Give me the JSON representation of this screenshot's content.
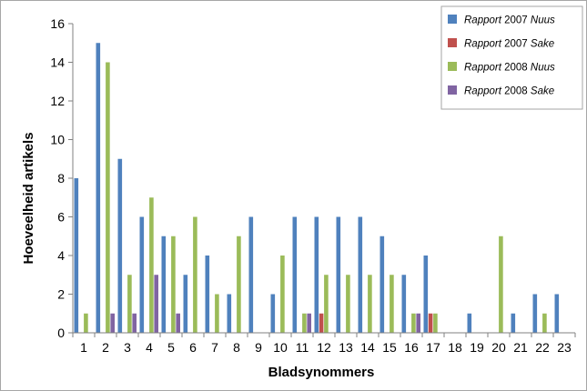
{
  "chart_data": {
    "type": "bar",
    "categories": [
      "1",
      "2",
      "3",
      "4",
      "5",
      "6",
      "7",
      "8",
      "9",
      "10",
      "11",
      "12",
      "13",
      "14",
      "15",
      "16",
      "17",
      "18",
      "19",
      "20",
      "21",
      "22",
      "23"
    ],
    "series": [
      {
        "name_prefix": "Rapport",
        "name_year": "2007",
        "name_suffix": "Nuus",
        "color": "#4f81bd",
        "values": [
          8,
          15,
          9,
          6,
          5,
          3,
          4,
          2,
          6,
          2,
          6,
          6,
          6,
          6,
          5,
          3,
          4,
          0,
          1,
          0,
          1,
          2,
          2
        ]
      },
      {
        "name_prefix": "Rapport",
        "name_year": "2007",
        "name_suffix": "Sake",
        "color": "#c0504d",
        "values": [
          0,
          0,
          0,
          0,
          0,
          0,
          0,
          0,
          0,
          0,
          0,
          1,
          0,
          0,
          0,
          0,
          1,
          0,
          0,
          0,
          0,
          0,
          0
        ]
      },
      {
        "name_prefix": "Rapport",
        "name_year": "2008",
        "name_suffix": "Nuus",
        "color": "#9bbb59",
        "values": [
          1,
          14,
          3,
          7,
          5,
          6,
          2,
          5,
          0,
          4,
          1,
          3,
          3,
          3,
          3,
          1,
          1,
          0,
          0,
          5,
          0,
          1,
          0
        ]
      },
      {
        "name_prefix": "Rapport",
        "name_year": "2008",
        "name_suffix": "Sake",
        "color": "#8064a2",
        "values": [
          0,
          1,
          1,
          3,
          1,
          0,
          0,
          0,
          0,
          0,
          1,
          0,
          0,
          0,
          0,
          1,
          0,
          0,
          0,
          0,
          0,
          0,
          0
        ]
      }
    ],
    "xlabel": "Bladsynommers",
    "ylabel": "Hoeveelheid artikels",
    "ylim": [
      0,
      16
    ],
    "yticks": [
      "0",
      "2",
      "4",
      "6",
      "8",
      "10",
      "12",
      "14",
      "16"
    ],
    "grid": false,
    "legend": "top-right"
  }
}
